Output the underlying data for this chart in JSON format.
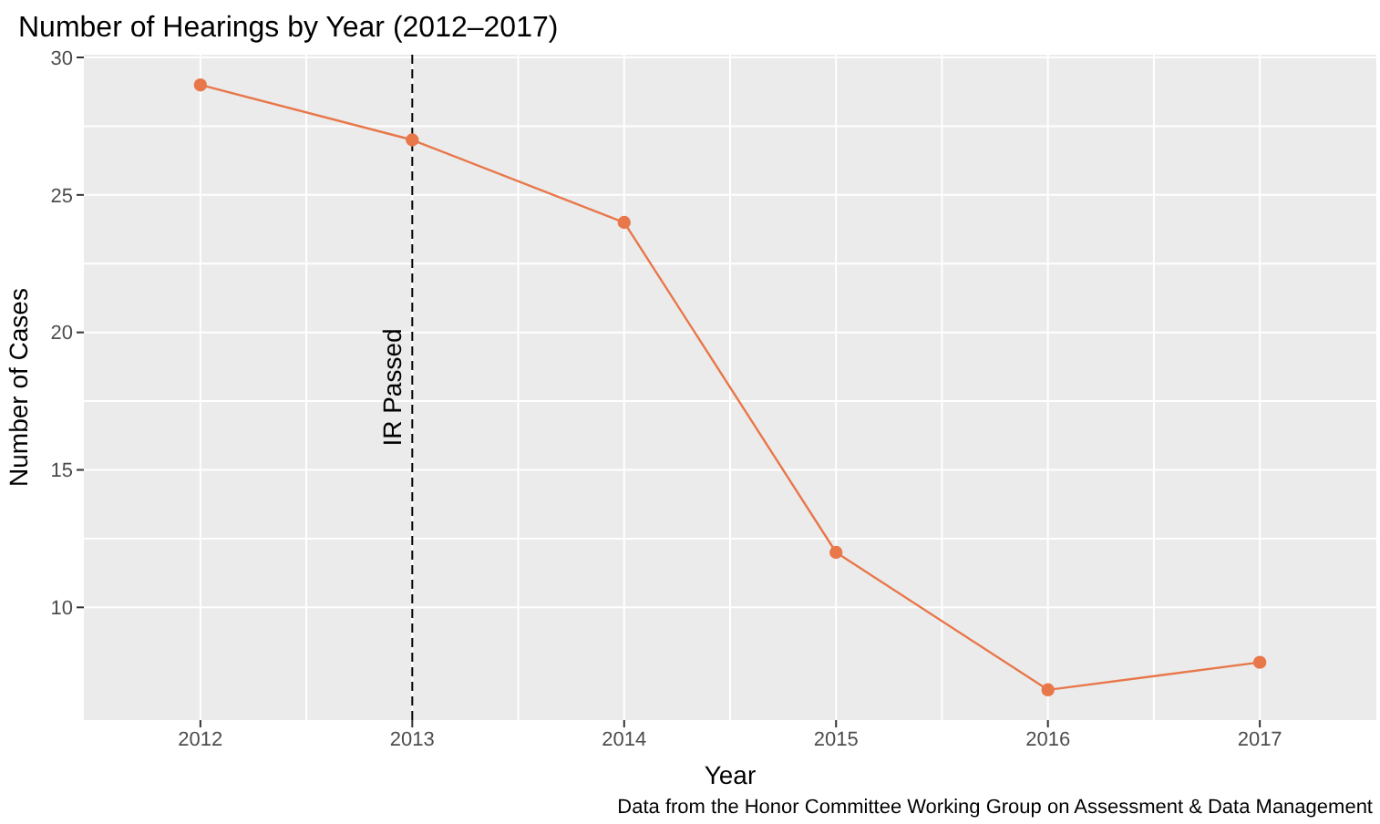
{
  "chart_data": {
    "type": "line",
    "title": "Number of Hearings by Year (2012–2017)",
    "xlabel": "Year",
    "ylabel": "Number of Cases",
    "x": [
      2012,
      2013,
      2014,
      2015,
      2016,
      2017
    ],
    "series": [
      {
        "color": "#e8774a",
        "values": [
          29,
          27,
          24,
          12,
          7,
          8
        ]
      }
    ],
    "xlim": [
      2011.45,
      2017.55
    ],
    "xticks": [
      2012,
      2013,
      2014,
      2015,
      2016,
      2017
    ],
    "ylim": [
      5.9,
      30.1
    ],
    "yticks": [
      10,
      15,
      20,
      25,
      30
    ],
    "grid": true,
    "marker": "circle",
    "line_style": "solid",
    "ref_lines": [
      {
        "axis": "x",
        "value": 2013,
        "label": "IR Passed",
        "color": "#000000",
        "line_style": "dashed"
      }
    ],
    "annotations": [
      "Data from the Honor Committee Working Group on Assessment & Data Management"
    ]
  }
}
